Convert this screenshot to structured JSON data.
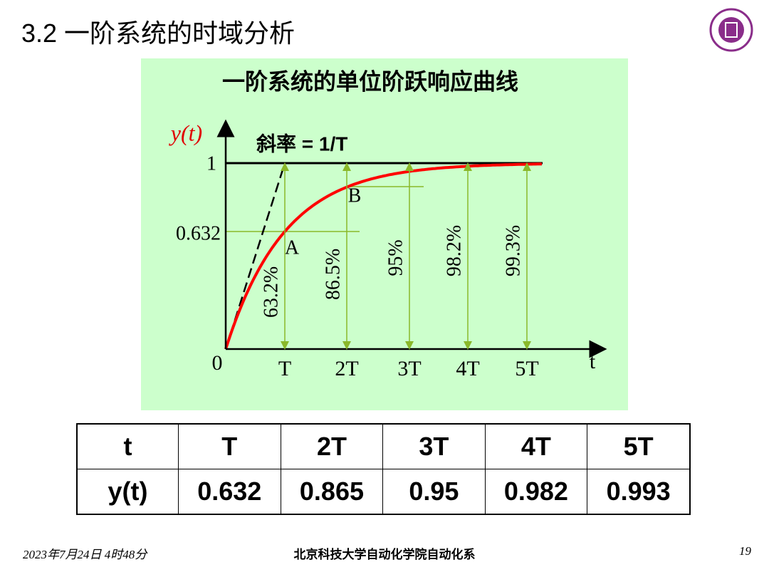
{
  "header": {
    "title": "3.2 一阶系统的时域分析"
  },
  "figure": {
    "title": "一阶系统的单位阶跃响应曲线",
    "y_label": "y(t)",
    "x_label": "t",
    "slope_label": "斜率 = 1/T",
    "y_tick_labels": [
      "1",
      "0.632"
    ],
    "origin_label": "0",
    "x_tick_labels": [
      "T",
      "2T",
      "3T",
      "4T",
      "5T"
    ],
    "point_labels": [
      "A",
      "B"
    ],
    "percent_labels": [
      "63.2%",
      "86.5%",
      "95%",
      "98.2%",
      "99.3%"
    ]
  },
  "table": {
    "rows": [
      [
        "t",
        "T",
        "2T",
        "3T",
        "4T",
        "5T"
      ],
      [
        "y(t)",
        "0.632",
        "0.865",
        "0.95",
        "0.982",
        "0.993"
      ]
    ]
  },
  "footer": {
    "date": "2023年7月24日 4时48分",
    "school": "北京科技大学自动化学院自动化系",
    "page": "19"
  }
}
